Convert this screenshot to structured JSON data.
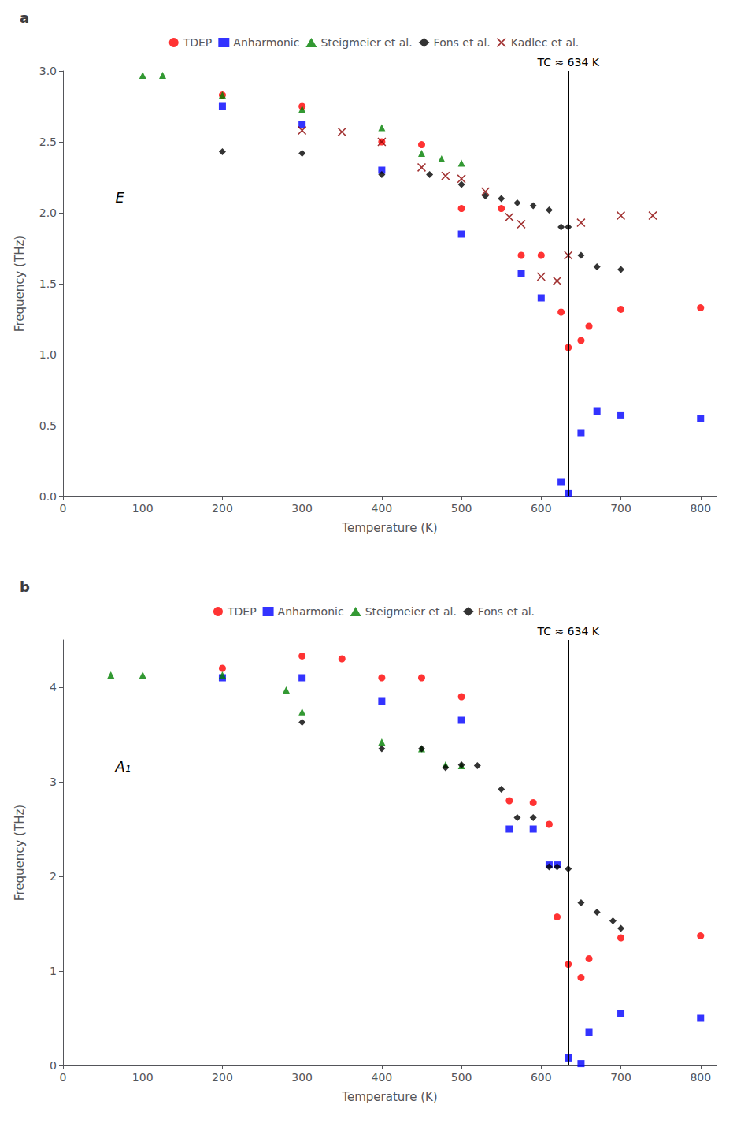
{
  "chart_data": [
    {
      "type": "scatter",
      "title": "a",
      "xlabel": "Temperature (K)",
      "ylabel": "Frequency (THz)",
      "xlim": [
        0,
        820
      ],
      "ylim": [
        0,
        3.0
      ],
      "xticks": [
        0,
        100,
        200,
        300,
        400,
        500,
        600,
        700,
        800
      ],
      "yticks": [
        {
          "value": 0,
          "label": "0.0"
        },
        0.5,
        {
          "value": 1.0,
          "label": "1.0"
        },
        1.5,
        {
          "value": 2.0,
          "label": "2.0"
        },
        2.5,
        {
          "value": 3.0,
          "label": "3.0"
        }
      ],
      "grid": false,
      "legend": "top",
      "series": [
        {
          "name": "TDEP",
          "color": "#ff0000",
          "marker": "circle",
          "x": [
            200,
            300,
            400,
            450,
            500,
            550,
            575,
            600,
            625,
            634,
            650,
            660,
            700,
            800
          ],
          "values": [
            2.83,
            2.75,
            2.5,
            2.48,
            2.03,
            2.03,
            1.7,
            1.7,
            1.3,
            1.05,
            1.1,
            1.2,
            1.32,
            1.33
          ]
        },
        {
          "name": "Anharmonic",
          "color": "#0000ff",
          "marker": "square",
          "x": [
            200,
            300,
            400,
            500,
            575,
            600,
            625,
            634,
            650,
            670,
            700,
            800
          ],
          "values": [
            2.75,
            2.62,
            2.3,
            1.85,
            1.57,
            1.4,
            0.1,
            0.02,
            0.45,
            0.6,
            0.57,
            0.55
          ]
        },
        {
          "name": "Steigmeier et al.",
          "color": "#008000",
          "marker": "triangle",
          "x": [
            100,
            125,
            200,
            300,
            400,
            450,
            475,
            500
          ],
          "values": [
            2.97,
            2.97,
            2.83,
            2.73,
            2.6,
            2.42,
            2.38,
            2.35
          ]
        },
        {
          "name": "Fons et al.",
          "color": "#000000",
          "marker": "diamond",
          "x": [
            200,
            300,
            400,
            460,
            500,
            530,
            550,
            570,
            590,
            610,
            625,
            634,
            650,
            670,
            700
          ],
          "values": [
            2.43,
            2.42,
            2.27,
            2.27,
            2.2,
            2.12,
            2.1,
            2.07,
            2.05,
            2.02,
            1.9,
            1.9,
            1.7,
            1.62,
            1.6
          ]
        },
        {
          "name": "Kadlec et al.",
          "color": "#8b0000",
          "marker": "x",
          "x": [
            300,
            350,
            400,
            450,
            480,
            500,
            530,
            560,
            575,
            600,
            620,
            634,
            650,
            700,
            740
          ],
          "values": [
            2.58,
            2.57,
            2.5,
            2.32,
            2.26,
            2.24,
            2.15,
            1.97,
            1.92,
            1.55,
            1.52,
            1.7,
            1.93,
            1.98,
            1.98
          ]
        }
      ],
      "annotations": [
        {
          "text": "E"
        },
        {
          "text": "TC ≈ 634 K",
          "x": 634
        }
      ]
    },
    {
      "type": "scatter",
      "title": "b",
      "xlabel": "Temperature (K)",
      "ylabel": "Frequency (THz)",
      "xlim": [
        0,
        820
      ],
      "ylim": [
        0,
        4.5
      ],
      "xticks": [
        0,
        100,
        200,
        300,
        400,
        500,
        600,
        700,
        800
      ],
      "yticks": [
        0,
        1,
        2,
        3,
        4
      ],
      "grid": false,
      "legend": "top",
      "series": [
        {
          "name": "TDEP",
          "color": "#ff0000",
          "marker": "circle",
          "x": [
            200,
            300,
            350,
            400,
            450,
            500,
            560,
            590,
            610,
            620,
            634,
            650,
            660,
            700,
            800
          ],
          "values": [
            4.2,
            4.33,
            4.3,
            4.1,
            4.1,
            3.9,
            2.8,
            2.78,
            2.55,
            1.57,
            1.07,
            0.93,
            1.13,
            1.35,
            1.37
          ]
        },
        {
          "name": "Anharmonic",
          "color": "#0000ff",
          "marker": "square",
          "x": [
            200,
            300,
            400,
            500,
            560,
            590,
            610,
            620,
            634,
            650,
            660,
            700,
            800
          ],
          "values": [
            4.1,
            4.1,
            3.85,
            3.65,
            2.5,
            2.5,
            2.12,
            2.12,
            0.08,
            0.02,
            0.35,
            0.55,
            0.5
          ]
        },
        {
          "name": "Steigmeier et al.",
          "color": "#008000",
          "marker": "triangle",
          "x": [
            60,
            100,
            200,
            280,
            300,
            400,
            450,
            480,
            500
          ],
          "values": [
            4.13,
            4.13,
            4.13,
            3.97,
            3.74,
            3.42,
            3.35,
            3.18,
            3.17
          ]
        },
        {
          "name": "Fons et al.",
          "color": "#000000",
          "marker": "diamond",
          "x": [
            300,
            400,
            450,
            480,
            500,
            520,
            550,
            570,
            590,
            610,
            620,
            634,
            650,
            670,
            690,
            700
          ],
          "values": [
            3.63,
            3.35,
            3.35,
            3.15,
            3.18,
            3.17,
            2.92,
            2.62,
            2.62,
            2.1,
            2.1,
            2.08,
            1.72,
            1.62,
            1.53,
            1.45
          ]
        }
      ],
      "annotations": [
        {
          "text": "A₁"
        },
        {
          "text": "TC ≈ 634 K",
          "x": 634
        }
      ]
    }
  ]
}
